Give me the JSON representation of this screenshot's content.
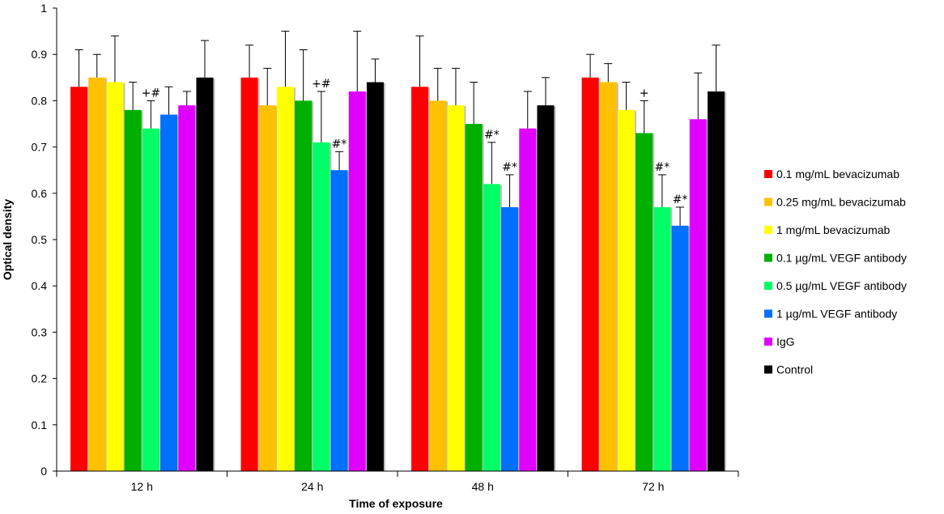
{
  "chart_data": {
    "type": "bar",
    "title": "",
    "xlabel": "Time of exposure",
    "ylabel": "Optical density",
    "ylim": [
      0,
      1
    ],
    "yticks": [
      "0",
      "0.1",
      "0.2",
      "0.3",
      "0.4",
      "0.5",
      "0.6",
      "0.7",
      "0.8",
      "0.9",
      "1"
    ],
    "categories": [
      "12 h",
      "24 h",
      "48 h",
      "72 h"
    ],
    "grid": false,
    "legend_position": "right",
    "series": [
      {
        "name": "0.1 mg/mL bevacizumab",
        "color": "#ff0000",
        "values": [
          0.83,
          0.85,
          0.83,
          0.85
        ],
        "errors": [
          0.08,
          0.07,
          0.11,
          0.05
        ],
        "annotations": [
          "",
          "",
          "",
          ""
        ]
      },
      {
        "name": "0.25 mg/mL bevacizumab",
        "color": "#ffc000",
        "values": [
          0.85,
          0.79,
          0.8,
          0.84
        ],
        "errors": [
          0.05,
          0.08,
          0.07,
          0.04
        ],
        "annotations": [
          "",
          "",
          "",
          ""
        ]
      },
      {
        "name": "1 mg/mL bevacizumab",
        "color": "#ffff00",
        "values": [
          0.84,
          0.83,
          0.79,
          0.78
        ],
        "errors": [
          0.1,
          0.12,
          0.08,
          0.06
        ],
        "annotations": [
          "",
          "",
          "",
          ""
        ]
      },
      {
        "name": "0.1 µg/mL VEGF antibody",
        "color": "#00b000",
        "values": [
          0.78,
          0.8,
          0.75,
          0.73
        ],
        "errors": [
          0.06,
          0.11,
          0.09,
          0.07
        ],
        "annotations": [
          "",
          "",
          "",
          "+"
        ]
      },
      {
        "name": "0.5 µg/mL VEGF antibody",
        "color": "#00ff66",
        "values": [
          0.74,
          0.71,
          0.62,
          0.57
        ],
        "errors": [
          0.06,
          0.11,
          0.09,
          0.07
        ],
        "annotations": [
          "+#",
          "+#",
          "#*",
          "#*"
        ]
      },
      {
        "name": "1 µg/mL VEGF antibody",
        "color": "#0070ff",
        "values": [
          0.77,
          0.65,
          0.57,
          0.53
        ],
        "errors": [
          0.06,
          0.04,
          0.07,
          0.04
        ],
        "annotations": [
          "",
          "#*",
          "#*",
          "#*"
        ]
      },
      {
        "name": "IgG",
        "color": "#e000ff",
        "values": [
          0.79,
          0.82,
          0.74,
          0.76
        ],
        "errors": [
          0.03,
          0.13,
          0.08,
          0.1
        ],
        "annotations": [
          "",
          "",
          "",
          ""
        ]
      },
      {
        "name": "Control",
        "color": "#000000",
        "values": [
          0.85,
          0.84,
          0.79,
          0.82
        ],
        "errors": [
          0.08,
          0.05,
          0.06,
          0.1
        ],
        "annotations": [
          "",
          "",
          "",
          ""
        ]
      }
    ]
  }
}
